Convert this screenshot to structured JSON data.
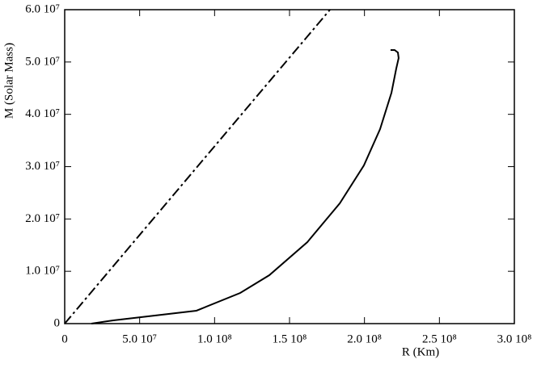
{
  "chart_data": {
    "type": "line",
    "xlabel": "R (Km)",
    "ylabel": "M (Solar Mass)",
    "xlim": [
      0,
      300000000
    ],
    "ylim": [
      0,
      60000000
    ],
    "xticks": [
      0,
      {
        "value": 50000000,
        "label": "5.0 10⁷"
      },
      {
        "value": 100000000,
        "label": "1.0 10⁸"
      },
      {
        "value": 150000000,
        "label": "1.5 10⁸"
      },
      {
        "value": 200000000,
        "label": "2.0 10⁸"
      },
      {
        "value": 250000000,
        "label": "2.5 10⁸"
      },
      {
        "value": 300000000,
        "label": "3.0 10⁸"
      }
    ],
    "yticks": [
      0,
      {
        "value": 10000000,
        "label": "1.0 10⁷"
      },
      {
        "value": 20000000,
        "label": "2.0 10⁷"
      },
      {
        "value": 30000000,
        "label": "3.0 10⁷"
      },
      {
        "value": 40000000,
        "label": "4.0 10⁷"
      },
      {
        "value": 50000000,
        "label": "5.0 10⁷"
      },
      {
        "value": 60000000,
        "label": "6.0 10⁷"
      }
    ],
    "lines": [
      {
        "color": "#000000",
        "style": "dash-dot",
        "x": [
          0,
          177000000
        ],
        "y": [
          0,
          60000000
        ]
      },
      {
        "color": "#000000",
        "style": "solid",
        "x": [
          17800000,
          32400000,
          87900000,
          117100000,
          136500000,
          161900000,
          183500000,
          199600000,
          210400000,
          218000000,
          221200000,
          222800000,
          222300000,
          220100000,
          217400000
        ],
        "y": [
          0,
          620000,
          2470000,
          5860000,
          9250000,
          15580000,
          22980000,
          30230000,
          37170000,
          44110000,
          48740000,
          50750000,
          51820000,
          52290000,
          52290000
        ]
      }
    ]
  }
}
